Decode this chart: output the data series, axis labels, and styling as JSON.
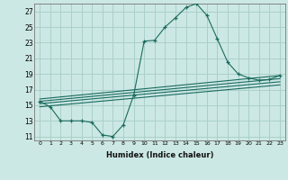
{
  "xlabel": "Humidex (Indice chaleur)",
  "ylabel": "",
  "xlim": [
    -0.5,
    23.5
  ],
  "ylim": [
    10.5,
    28.0
  ],
  "yticks": [
    11,
    13,
    15,
    17,
    19,
    21,
    23,
    25,
    27
  ],
  "xticks": [
    0,
    1,
    2,
    3,
    4,
    5,
    6,
    7,
    8,
    9,
    10,
    11,
    12,
    13,
    14,
    15,
    16,
    17,
    18,
    19,
    20,
    21,
    22,
    23
  ],
  "bg_color": "#cce8e4",
  "grid_color": "#aacfca",
  "line_color": "#1a6b5e",
  "main_line": {
    "x": [
      0,
      1,
      2,
      3,
      4,
      5,
      6,
      7,
      8,
      9,
      10,
      11,
      12,
      13,
      14,
      15,
      16,
      17,
      18,
      19,
      20,
      21,
      22,
      23
    ],
    "y": [
      15.5,
      14.8,
      13.0,
      13.0,
      13.0,
      12.8,
      11.2,
      11.0,
      12.5,
      16.3,
      23.2,
      23.3,
      25.0,
      26.2,
      27.5,
      28.0,
      26.5,
      23.5,
      20.5,
      19.0,
      18.5,
      18.2,
      18.3,
      18.8
    ]
  },
  "straight_lines": [
    {
      "x0": 0,
      "y0": 15.8,
      "x1": 23,
      "y1": 18.8
    },
    {
      "x0": 0,
      "y0": 15.5,
      "x1": 23,
      "y1": 18.4
    },
    {
      "x0": 0,
      "y0": 15.2,
      "x1": 23,
      "y1": 18.0
    },
    {
      "x0": 0,
      "y0": 14.8,
      "x1": 23,
      "y1": 17.6
    }
  ]
}
